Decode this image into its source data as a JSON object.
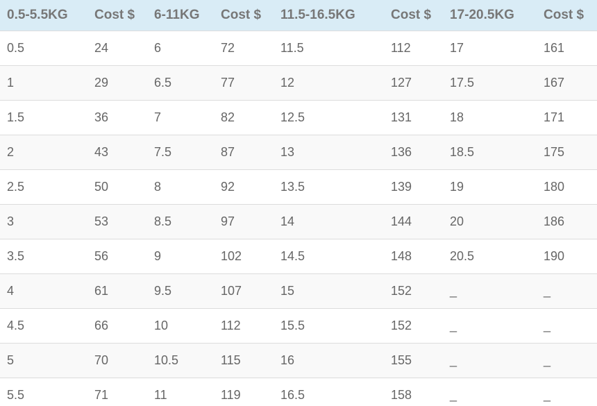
{
  "table": {
    "header": [
      "0.5-5.5KG",
      "Cost $",
      "6-11KG",
      "Cost $",
      "11.5-16.5KG",
      "Cost $",
      "17-20.5KG",
      "Cost $"
    ],
    "rows": [
      [
        "0.5",
        "24",
        "6",
        "72",
        "11.5",
        "112",
        "17",
        "161"
      ],
      [
        "1",
        "29",
        "6.5",
        "77",
        "12",
        "127",
        "17.5",
        "167"
      ],
      [
        "1.5",
        "36",
        "7",
        "82",
        "12.5",
        "131",
        "18",
        "171"
      ],
      [
        "2",
        "43",
        "7.5",
        "87",
        "13",
        "136",
        "18.5",
        "175"
      ],
      [
        "2.5",
        "50",
        "8",
        "92",
        "13.5",
        "139",
        "19",
        "180"
      ],
      [
        "3",
        "53",
        "8.5",
        "97",
        "14",
        "144",
        "20",
        "186"
      ],
      [
        "3.5",
        "56",
        "9",
        "102",
        "14.5",
        "148",
        "20.5",
        "190"
      ],
      [
        "4",
        "61",
        "9.5",
        "107",
        "15",
        "152",
        "_",
        "_"
      ],
      [
        "4.5",
        "66",
        "10",
        "112",
        "15.5",
        "152",
        "_",
        "_"
      ],
      [
        "5",
        "70",
        "10.5",
        "115",
        "16",
        "155",
        "_",
        "_"
      ],
      [
        "5.5",
        "71",
        "11",
        "119",
        "16.5",
        "158",
        "_",
        "_"
      ]
    ]
  }
}
